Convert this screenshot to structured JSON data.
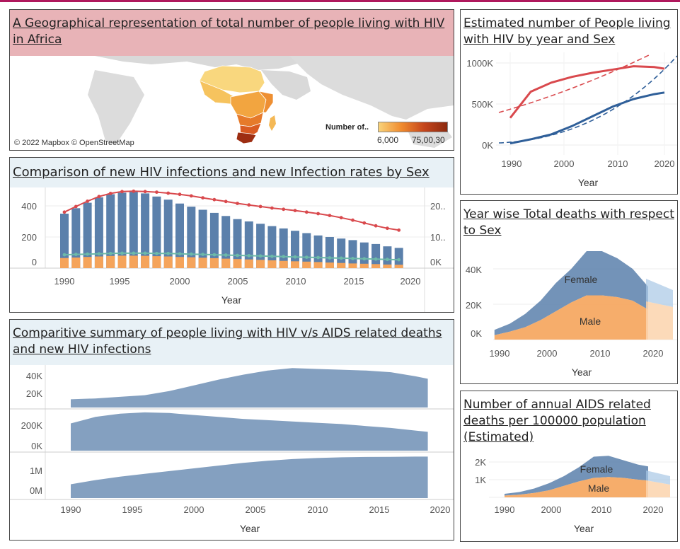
{
  "colors": {
    "accent": "#b0185d",
    "blue": "#5b80ab",
    "orange": "#f5a45b",
    "red": "#d9494d",
    "line_blue": "#2f5f99",
    "teal": "#6cb9a8",
    "header_pink": "#e8b3b7",
    "header_blue": "#e8f1f6"
  },
  "map": {
    "title": "A Geographical representation of total number of people living with HIV in Africa",
    "credit": "© 2022 Mapbox © OpenStreetMap",
    "legend_label": "Number of..",
    "legend_min": "6,000",
    "legend_max": "75,00,30"
  },
  "estimated": {
    "title": "Estimated number of People living with HIV by year and Sex",
    "xlabel": "Year",
    "y_ticks": [
      "1000K",
      "500K",
      "0K"
    ],
    "x_ticks": [
      "1990",
      "2000",
      "2010",
      "2020"
    ]
  },
  "deaths_sex": {
    "title": "Year wise Total deaths with respect to Sex",
    "xlabel": "Year",
    "y_ticks": [
      "40K",
      "20K",
      "0K"
    ],
    "x_ticks": [
      "1990",
      "2000",
      "2010",
      "2020"
    ],
    "female_label": "Female",
    "male_label": "Male"
  },
  "per100k": {
    "title": "Number of annual AIDS related deaths per 100000 population (Estimated)",
    "xlabel": "Year",
    "y_ticks": [
      "2K",
      "1K"
    ],
    "x_ticks": [
      "1990",
      "2000",
      "2010",
      "2020"
    ],
    "female_label": "Female",
    "male_label": "Male"
  },
  "comparison": {
    "title": "Comparison  of new HIV infections and new Infection rates by Sex",
    "xlabel": "Year",
    "y_ticks_left": [
      "400",
      "200",
      "0"
    ],
    "y_ticks_right": [
      "20..",
      "10..",
      "0K"
    ],
    "x_ticks": [
      "1990",
      "1995",
      "2000",
      "2005",
      "2010",
      "2015",
      "2020"
    ]
  },
  "summary": {
    "title": "Comparitive summary of people living with HIV v/s AIDS related deaths and new HIV infections",
    "xlabel": "Year",
    "row1_ticks": [
      "40K",
      "20K"
    ],
    "row2_ticks": [
      "200K",
      "0K"
    ],
    "row3_ticks": [
      "1M",
      "0M"
    ],
    "x_ticks": [
      "1990",
      "1995",
      "2000",
      "2005",
      "2010",
      "2015",
      "2020"
    ]
  },
  "chart_data": [
    {
      "type": "line",
      "title": "Estimated number of People living with HIV by year and Sex",
      "xlabel": "Year",
      "ylabel": "",
      "xlim": [
        1986,
        2022
      ],
      "ylim": [
        0,
        1050000
      ],
      "x": [
        1990,
        1994,
        1998,
        2002,
        2006,
        2010,
        2014,
        2018,
        2020
      ],
      "series": [
        {
          "values": [
            330000,
            650000,
            760000,
            830000,
            880000,
            920000,
            960000,
            950000,
            930000
          ]
        },
        {
          "values": [
            20000,
            70000,
            130000,
            230000,
            350000,
            470000,
            560000,
            620000,
            640000
          ]
        }
      ]
    },
    {
      "type": "area",
      "title": "Year wise Total deaths with respect to Sex",
      "xlabel": "Year",
      "ylabel": "",
      "xlim": [
        1988,
        2023
      ],
      "ylim": [
        0,
        45000
      ],
      "x": [
        1989,
        1992,
        1995,
        1998,
        2001,
        2004,
        2007,
        2010,
        2013,
        2016,
        2019
      ],
      "series": [
        {
          "name": "Male",
          "values": [
            2500,
            4500,
            7000,
            11000,
            16000,
            21000,
            25000,
            25000,
            24000,
            22000,
            17000
          ]
        },
        {
          "name": "Female",
          "values": [
            3000,
            4500,
            7500,
            11000,
            16000,
            19000,
            25000,
            25000,
            22000,
            18000,
            13000
          ]
        }
      ]
    },
    {
      "type": "area",
      "title": "Number of annual AIDS related deaths per 100000 population (Estimated)",
      "xlabel": "Year",
      "ylabel": "",
      "xlim": [
        1988,
        2023
      ],
      "ylim": [
        0,
        2500
      ],
      "x": [
        1990,
        1993,
        1996,
        1999,
        2002,
        2005,
        2008,
        2011,
        2014,
        2017,
        2019
      ],
      "series": [
        {
          "name": "Male",
          "values": [
            100,
            150,
            250,
            400,
            650,
            900,
            1100,
            1150,
            1100,
            1000,
            950
          ]
        },
        {
          "name": "Female",
          "values": [
            100,
            150,
            250,
            400,
            550,
            800,
            1200,
            1200,
            1000,
            850,
            800
          ]
        }
      ]
    },
    {
      "type": "bar",
      "title": "Comparison  of new HIV infections and new Infection rates by Sex",
      "xlabel": "Year",
      "ylabel": "",
      "xlim": [
        1986,
        2021
      ],
      "ylim": [
        0,
        500
      ],
      "x": [
        1990,
        1991,
        1992,
        1993,
        1994,
        1995,
        1996,
        1997,
        1998,
        1999,
        2000,
        2001,
        2002,
        2003,
        2004,
        2005,
        2006,
        2007,
        2008,
        2009,
        2010,
        2011,
        2012,
        2013,
        2014,
        2015,
        2016,
        2017,
        2018,
        2019
      ],
      "series": [
        {
          "values": [
            350,
            385,
            420,
            455,
            475,
            485,
            490,
            480,
            460,
            440,
            415,
            395,
            375,
            355,
            335,
            315,
            300,
            285,
            270,
            255,
            240,
            225,
            210,
            200,
            190,
            180,
            165,
            155,
            140,
            130
          ]
        },
        {
          "values": [
            65,
            68,
            72,
            75,
            78,
            80,
            80,
            79,
            77,
            75,
            72,
            70,
            67,
            64,
            61,
            58,
            56,
            53,
            50,
            47,
            44,
            42,
            39,
            36,
            33,
            30,
            28,
            26,
            23,
            22
          ]
        },
        {
          "values": [
            18.0,
            19.8,
            21.5,
            23.0,
            24.0,
            24.6,
            24.7,
            24.6,
            24.4,
            24.1,
            23.7,
            23.2,
            22.6,
            22.0,
            21.4,
            20.8,
            20.3,
            19.8,
            19.3,
            18.9,
            18.5,
            18.0,
            17.5,
            16.9,
            16.2,
            15.4,
            14.5,
            13.6,
            12.8,
            12.2
          ]
        },
        {
          "values": [
            4.3,
            4.4,
            4.5,
            4.6,
            4.7,
            4.8,
            4.8,
            4.8,
            4.7,
            4.7,
            4.6,
            4.5,
            4.4,
            4.3,
            4.2,
            4.1,
            4.0,
            3.9,
            3.8,
            3.7,
            3.6,
            3.5,
            3.4,
            3.3,
            3.2,
            3.1,
            3.0,
            2.9,
            2.8,
            2.7
          ]
        }
      ]
    },
    {
      "type": "area",
      "title": "Comparitive summary of people living with HIV v/s AIDS related deaths and new HIV infections",
      "xlabel": "Year",
      "ylabel": "",
      "xlim": [
        1986,
        2021
      ],
      "x": [
        1990,
        1992,
        1994,
        1996,
        1998,
        2000,
        2002,
        2004,
        2006,
        2008,
        2010,
        2012,
        2014,
        2016,
        2018,
        2019
      ],
      "series": [
        {
          "values": [
            10000,
            11000,
            13000,
            15000,
            20000,
            27000,
            34000,
            40000,
            45000,
            48000,
            47000,
            46000,
            45000,
            43000,
            38000,
            35000
          ]
        },
        {
          "values": [
            210000,
            260000,
            285000,
            295000,
            290000,
            275000,
            260000,
            245000,
            235000,
            225000,
            215000,
            205000,
            190000,
            175000,
            155000,
            145000
          ]
        },
        {
          "values": [
            400000,
            520000,
            620000,
            700000,
            780000,
            860000,
            940000,
            1020000,
            1080000,
            1130000,
            1160000,
            1180000,
            1190000,
            1195000,
            1200000,
            1200000
          ]
        }
      ]
    }
  ]
}
